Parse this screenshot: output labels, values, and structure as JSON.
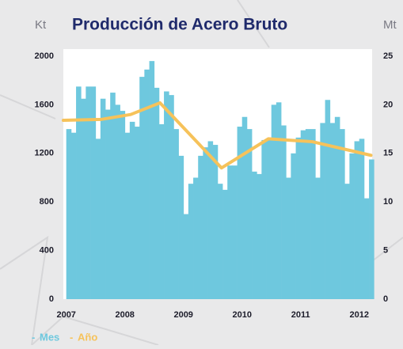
{
  "chart_data": {
    "type": "bar_line",
    "title": "Producción de Acero Bruto",
    "y_label": "Kt",
    "y2_label": "Mt",
    "xlim": [
      2006.95,
      2012.22
    ],
    "xticks": [
      2007,
      2008,
      2009,
      2010,
      2011,
      2012
    ],
    "ylim": [
      0,
      2000
    ],
    "yticks": [
      0,
      400,
      800,
      1200,
      1600,
      2000
    ],
    "y2lim": [
      0,
      25
    ],
    "y2ticks": [
      0,
      5,
      10,
      15,
      20,
      25
    ],
    "series": [
      {
        "name": "Mes",
        "type": "bar",
        "color": "#6ec8de",
        "x": [
          2007,
          2007.083,
          2007.167,
          2007.25,
          2007.333,
          2007.417,
          2007.5,
          2007.583,
          2007.667,
          2007.75,
          2007.833,
          2007.917,
          2008,
          2008.083,
          2008.167,
          2008.25,
          2008.333,
          2008.417,
          2008.5,
          2008.583,
          2008.667,
          2008.75,
          2008.833,
          2008.917,
          2009,
          2009.083,
          2009.167,
          2009.25,
          2009.333,
          2009.417,
          2009.5,
          2009.583,
          2009.667,
          2009.75,
          2009.833,
          2009.917,
          2010,
          2010.083,
          2010.167,
          2010.25,
          2010.333,
          2010.417,
          2010.5,
          2010.583,
          2010.667,
          2010.75,
          2010.833,
          2010.917,
          2011,
          2011.083,
          2011.167,
          2011.25,
          2011.333,
          2011.417,
          2011.5,
          2011.583,
          2011.667,
          2011.75,
          2011.833,
          2011.917,
          2012,
          2012.083,
          2012.167
        ],
        "values": [
          1400,
          1370,
          1750,
          1650,
          1750,
          1750,
          1320,
          1650,
          1560,
          1700,
          1600,
          1550,
          1370,
          1460,
          1420,
          1830,
          1890,
          1960,
          1740,
          1440,
          1710,
          1680,
          1400,
          1180,
          700,
          950,
          1000,
          1180,
          1250,
          1300,
          1270,
          950,
          900,
          1100,
          1100,
          1420,
          1500,
          1400,
          1050,
          1030,
          1310,
          1320,
          1600,
          1620,
          1430,
          1000,
          1200,
          1330,
          1390,
          1400,
          1400,
          1000,
          1450,
          1640,
          1450,
          1500,
          1400,
          950,
          1200,
          1300,
          1320,
          830,
          1150
        ]
      },
      {
        "name": "Año",
        "type": "line",
        "axis": "y2",
        "color": "#f6c25a",
        "x": [
          2006.95,
          2007.6,
          2008.1,
          2008.6,
          2009.65,
          2010.45,
          2011.2,
          2012.2
        ],
        "values": [
          18.4,
          18.5,
          19.0,
          20.2,
          13.5,
          16.5,
          16.2,
          14.8
        ]
      }
    ]
  }
}
